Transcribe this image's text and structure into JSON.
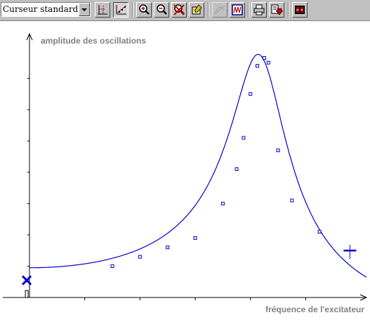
{
  "toolbar": {
    "cursor_mode": "Curseur standard",
    "buttons": [
      {
        "id": "axes-xy",
        "icon": "axes-xy-icon"
      },
      {
        "id": "trace",
        "icon": "scatter-trace-icon",
        "pressed": true
      },
      {
        "id": "zoom-in",
        "icon": "zoom-in-icon"
      },
      {
        "id": "zoom-out",
        "icon": "zoom-out-icon"
      },
      {
        "id": "zoom-cancel",
        "icon": "zoom-cancel-icon"
      },
      {
        "id": "tool",
        "icon": "hand-pencil-icon"
      },
      {
        "id": "tangent",
        "icon": "tangent-icon",
        "disabled": true
      },
      {
        "id": "oscillo",
        "icon": "oscilloscope-icon"
      },
      {
        "id": "print",
        "icon": "printer-icon"
      },
      {
        "id": "export",
        "icon": "export-icon"
      },
      {
        "id": "film",
        "icon": "film-icon"
      }
    ]
  },
  "chart_data": {
    "type": "scatter",
    "ylabel": "amplitude des oscillations",
    "xlabel": "fréquence de l'excitateur",
    "xlim": [
      0,
      12.2
    ],
    "ylim": [
      0,
      8.2
    ],
    "grid": false,
    "series": [
      {
        "style": "markers",
        "color": "#0000cc",
        "x": [
          3.0,
          4.0,
          5.0,
          6.0,
          7.0,
          7.5,
          7.75,
          8.0,
          8.25,
          8.5,
          8.65,
          9.0,
          9.5,
          10.5
        ],
        "y": [
          1.0,
          1.3,
          1.6,
          1.9,
          3.0,
          4.1,
          5.1,
          6.5,
          7.4,
          7.65,
          7.5,
          4.7,
          3.1,
          2.1
        ]
      },
      {
        "style": "line",
        "color": "#0000cc",
        "model": "resonance",
        "peak_x": 8.4,
        "peak_y": 7.7,
        "baseline_y": 0.95
      }
    ],
    "markers": [
      {
        "symbol": "cross",
        "color": "#0000cc",
        "x": -0.1,
        "y": 0.55
      },
      {
        "symbol": "cursor-cross",
        "color": "#0000cc",
        "x": 11.6,
        "y": 1.5
      }
    ]
  }
}
